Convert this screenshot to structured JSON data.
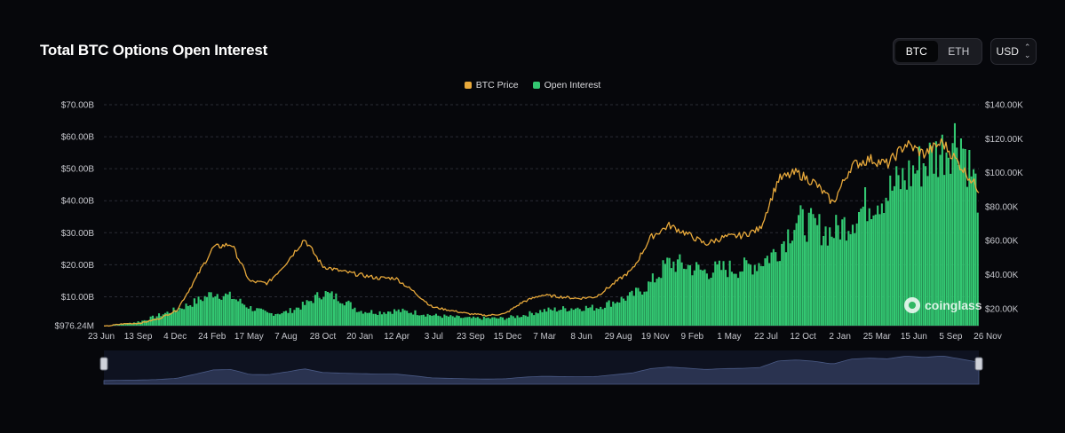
{
  "header": {
    "title": "Total BTC Options Open Interest",
    "asset_tabs": [
      {
        "label": "BTC",
        "active": true
      },
      {
        "label": "ETH",
        "active": false
      }
    ],
    "currency": "USD"
  },
  "watermark": "coinglass",
  "colors": {
    "background": "#06070b",
    "btc_price": "#e8a93b",
    "open_interest": "#33c872",
    "navigator": "#2a3350"
  },
  "chart_data": {
    "type": "area",
    "title": "Total BTC Options Open Interest",
    "legend": [
      "BTC Price",
      "Open Interest"
    ],
    "x_tick_labels": [
      "23 Jun",
      "13 Sep",
      "4 Dec",
      "24 Feb",
      "17 May",
      "7 Aug",
      "28 Oct",
      "20 Jan",
      "12 Apr",
      "3 Jul",
      "23 Sep",
      "15 Dec",
      "7 Mar",
      "8 Jun",
      "29 Aug",
      "19 Nov",
      "9 Feb",
      "1 May",
      "22 Jul",
      "12 Oct",
      "2 Jan",
      "25 Mar",
      "15 Jun",
      "5 Sep",
      "26 Nov"
    ],
    "y_left_ticks": [
      "$976.24M",
      "$10.00B",
      "$20.00B",
      "$30.00B",
      "$40.00B",
      "$50.00B",
      "$60.00B",
      "$70.00B"
    ],
    "y_right_ticks": [
      "$20.00K",
      "$40.00K",
      "$60.00K",
      "$80.00K",
      "$100.00K",
      "$120.00K",
      "$140.00K"
    ],
    "ylim_left_billion_usd": [
      0.976,
      70
    ],
    "ylim_right_thousand_usd": [
      10,
      140
    ],
    "series": [
      {
        "name": "Open Interest",
        "axis": "left",
        "unit": "billion USD",
        "x_index": [
          0,
          1,
          2,
          3,
          4,
          5,
          6,
          7,
          8,
          9,
          10,
          11,
          12,
          13,
          14,
          15,
          16,
          17,
          18,
          19,
          20,
          21,
          22,
          23,
          24,
          25,
          26,
          27,
          28,
          29,
          30,
          31,
          32,
          33,
          34,
          35,
          36,
          37,
          38,
          39,
          40,
          41,
          42,
          43,
          44,
          45,
          46,
          47,
          48
        ],
        "values": [
          1.0,
          1.5,
          2.5,
          4.5,
          6.5,
          9.0,
          12.0,
          10.5,
          7.0,
          5.0,
          5.5,
          8.0,
          12.0,
          10.0,
          6.0,
          5.5,
          6.0,
          5.5,
          4.5,
          4.0,
          3.5,
          3.5,
          3.5,
          4.5,
          6.0,
          6.5,
          7.0,
          7.0,
          9.0,
          11.0,
          15.0,
          22.0,
          21.0,
          19.0,
          20.0,
          20.0,
          22.0,
          26.0,
          36.0,
          34.0,
          32.0,
          36.0,
          42.0,
          45.0,
          50.0,
          55.0,
          59.0,
          65.0,
          45.0
        ]
      },
      {
        "name": "BTC Price",
        "axis": "right",
        "unit": "thousand USD",
        "x_index": [
          0,
          1,
          2,
          3,
          4,
          5,
          6,
          7,
          8,
          9,
          10,
          11,
          12,
          13,
          14,
          15,
          16,
          17,
          18,
          19,
          20,
          21,
          22,
          23,
          24,
          25,
          26,
          27,
          28,
          29,
          30,
          31,
          32,
          33,
          34,
          35,
          36,
          37,
          38,
          39,
          40,
          41,
          42,
          43,
          44,
          45,
          46,
          47,
          48
        ],
        "values": [
          9.5,
          11.0,
          11.5,
          14.0,
          19.0,
          37.0,
          56.0,
          58.0,
          36.0,
          35.0,
          47.0,
          61.0,
          45.0,
          42.0,
          40.0,
          38.0,
          38.0,
          30.0,
          21.0,
          19.0,
          17.0,
          16.0,
          17.0,
          24.0,
          28.0,
          27.0,
          26.0,
          27.0,
          35.0,
          43.0,
          62.0,
          69.0,
          64.0,
          58.0,
          62.0,
          63.0,
          67.0,
          96.0,
          100.0,
          94.0,
          82.0,
          104.0,
          108.0,
          105.0,
          117.0,
          111.0,
          118.0,
          104.0,
          90.0
        ]
      }
    ]
  }
}
